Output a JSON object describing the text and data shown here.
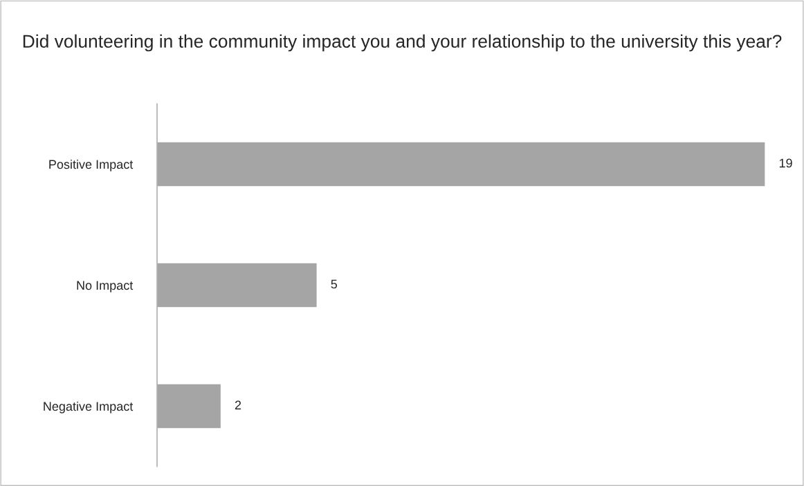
{
  "chart_data": {
    "type": "bar",
    "orientation": "horizontal",
    "title": "Did volunteering in the community impact you and your relationship to the university this year?",
    "categories": [
      "Positive Impact",
      "No Impact",
      "Negative Impact"
    ],
    "values": [
      19,
      5,
      2
    ],
    "color": "#a5a5a5",
    "data_labels": true,
    "grid": false,
    "legend": false,
    "tick_labels": "y"
  }
}
